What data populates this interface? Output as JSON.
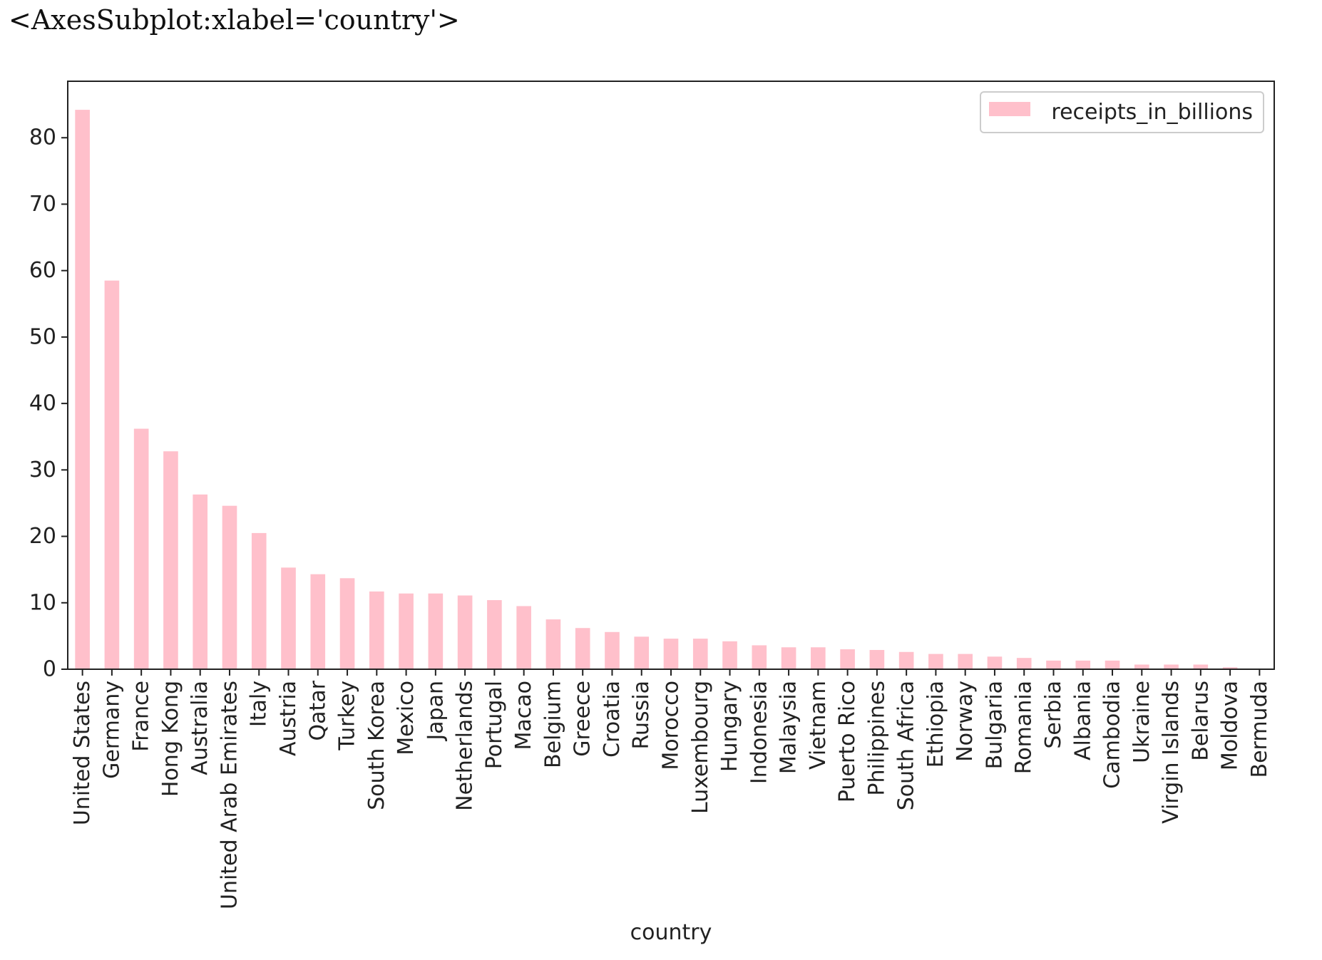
{
  "output_repr": "<AxesSubplot:xlabel='country'>",
  "colors": {
    "bar": "#ffc0cb",
    "axis": "#222222",
    "text": "#222222"
  },
  "chart_data": {
    "type": "bar",
    "xlabel": "country",
    "ylabel": "",
    "ylim": [
      0,
      88.5
    ],
    "yticks": [
      0,
      10,
      20,
      30,
      40,
      50,
      60,
      70,
      80
    ],
    "grid": false,
    "legend_position": "top-right",
    "categories": [
      "United States",
      "Germany",
      "France",
      "Hong Kong",
      "Australia",
      "United Arab Emirates",
      "Italy",
      "Austria",
      "Qatar",
      "Turkey",
      "South Korea",
      "Mexico",
      "Japan",
      "Netherlands",
      "Portugal",
      "Macao",
      "Belgium",
      "Greece",
      "Croatia",
      "Russia",
      "Morocco",
      "Luxembourg",
      "Hungary",
      "Indonesia",
      "Malaysia",
      "Vietnam",
      "Puerto Rico",
      "Philippines",
      "South Africa",
      "Ethiopia",
      "Norway",
      "Bulgaria",
      "Romania",
      "Serbia",
      "Albania",
      "Cambodia",
      "Ukraine",
      "Virgin Islands",
      "Belarus",
      "Moldova",
      "Bermuda"
    ],
    "series": [
      {
        "name": "receipts_in_billions",
        "values": [
          84.2,
          58.5,
          36.2,
          32.8,
          26.3,
          24.6,
          20.5,
          15.3,
          14.3,
          13.7,
          11.7,
          11.4,
          11.4,
          11.1,
          10.4,
          9.5,
          7.5,
          6.2,
          5.6,
          4.9,
          4.6,
          4.6,
          4.2,
          3.6,
          3.3,
          3.3,
          3.0,
          2.9,
          2.6,
          2.3,
          2.3,
          1.9,
          1.7,
          1.3,
          1.3,
          1.3,
          0.7,
          0.7,
          0.7,
          0.3,
          0.1
        ]
      }
    ]
  }
}
